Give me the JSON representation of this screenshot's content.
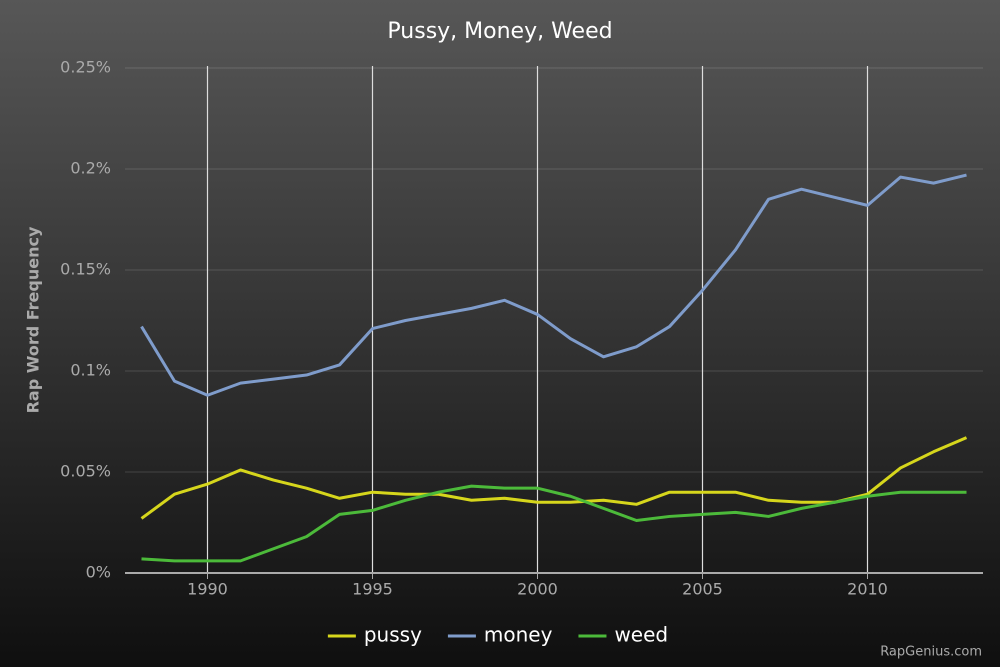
{
  "chart_data": {
    "type": "line",
    "title": "Pussy, Money, Weed",
    "y_label": "Rap Word Frequency",
    "watermark": "RapGenius.com",
    "x": [
      1988,
      1989,
      1990,
      1991,
      1992,
      1993,
      1994,
      1995,
      1996,
      1997,
      1998,
      1999,
      2000,
      2001,
      2002,
      2003,
      2004,
      2005,
      2006,
      2007,
      2008,
      2009,
      2010,
      2011,
      2012,
      2013
    ],
    "series": [
      {
        "name": "pussy",
        "color": "#d6d61c",
        "values": [
          0.027,
          0.039,
          0.044,
          0.051,
          0.046,
          0.042,
          0.037,
          0.04,
          0.039,
          0.039,
          0.036,
          0.037,
          0.035,
          0.035,
          0.036,
          0.034,
          0.04,
          0.04,
          0.04,
          0.036,
          0.035,
          0.035,
          0.039,
          0.052,
          0.06,
          0.067
        ]
      },
      {
        "name": "money",
        "color": "#7f9ccb",
        "values": [
          0.122,
          0.095,
          0.088,
          0.094,
          0.096,
          0.098,
          0.103,
          0.121,
          0.125,
          0.128,
          0.131,
          0.135,
          0.128,
          0.116,
          0.107,
          0.112,
          0.122,
          0.14,
          0.16,
          0.185,
          0.19,
          0.186,
          0.182,
          0.196,
          0.193,
          0.197
        ]
      },
      {
        "name": "weed",
        "color": "#4cba3a",
        "values": [
          0.007,
          0.006,
          0.006,
          0.006,
          0.012,
          0.018,
          0.029,
          0.031,
          0.036,
          0.04,
          0.043,
          0.042,
          0.042,
          0.038,
          0.032,
          0.026,
          0.028,
          0.029,
          0.03,
          0.028,
          0.032,
          0.035,
          0.038,
          0.04,
          0.04,
          0.04
        ]
      }
    ],
    "xlim": [
      1987.5,
      2013.5
    ],
    "xticks": [
      1990,
      1995,
      2000,
      2005,
      2010
    ],
    "ylim": [
      0,
      0.25
    ],
    "yticks": [
      {
        "value": 0,
        "label": "0%"
      },
      {
        "value": 0.05,
        "label": "0.05%"
      },
      {
        "value": 0.1,
        "label": "0.1%"
      },
      {
        "value": 0.15,
        "label": "0.15%"
      },
      {
        "value": 0.2,
        "label": "0.2%"
      },
      {
        "value": 0.25,
        "label": "0.25%"
      }
    ],
    "grid": true
  }
}
